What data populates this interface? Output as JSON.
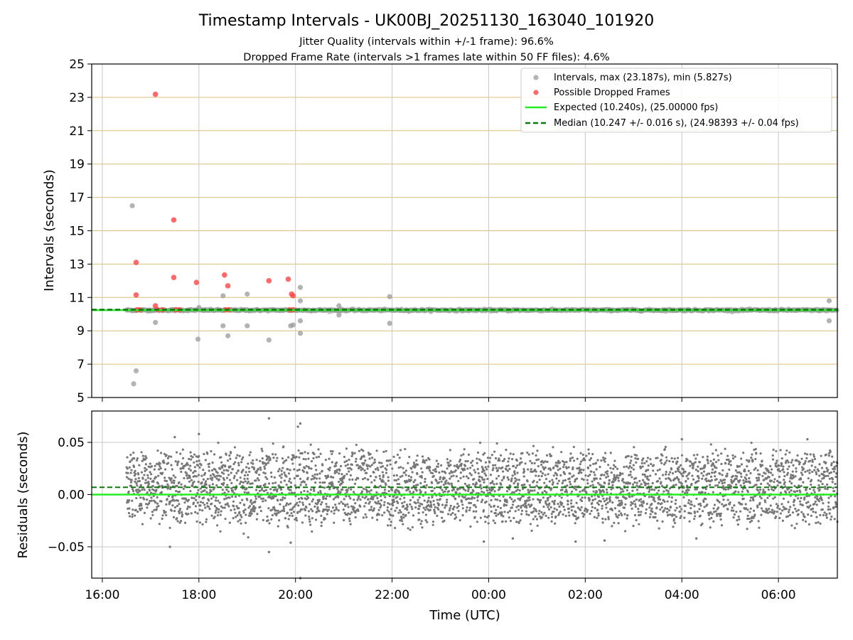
{
  "chart_data": [
    {
      "type": "scatter",
      "title": "Timestamp Intervals - UK00BJ_20251130_163040_101920",
      "subtitle_lines": [
        "Jitter Quality (intervals within +/-1 frame): 96.6%",
        "Dropped Frame Rate (intervals >1 frames late within 50 FF files): 4.6%"
      ],
      "xlabel": "",
      "ylabel": "Intervals (seconds)",
      "x_units": "hours since 16:00 UTC (2025-11-30)",
      "xlim": [
        -0.22,
        15.22
      ],
      "ylim": [
        5,
        25
      ],
      "yticks": [
        5,
        7,
        9,
        11,
        13,
        15,
        17,
        19,
        21,
        23,
        25
      ],
      "xticks": [
        0,
        2,
        4,
        6,
        8,
        10,
        12,
        14
      ],
      "xtick_labels": [
        "16:00",
        "18:00",
        "20:00",
        "22:00",
        "00:00",
        "02:00",
        "04:00",
        "06:00"
      ],
      "grid": true,
      "legend_position": "top-right",
      "legend": [
        {
          "label": "Intervals, max (23.187s), min (5.827s)",
          "marker": "circle",
          "color": "#999999"
        },
        {
          "label": "Possible Dropped Frames",
          "marker": "circle",
          "color": "#ff4444"
        },
        {
          "label": "Expected (10.240s), (25.00000 fps)",
          "style": "solid",
          "color": "#22ee22"
        },
        {
          "label": "Median (10.247 +/- 0.016 s), (24.98393 +/- 0.04 fps)",
          "style": "dashed",
          "color": "#0a7a0a"
        }
      ],
      "series": [
        {
          "name": "Intervals, max (23.187s), min (5.827s)",
          "color": "#999999",
          "baseline": {
            "y": 10.24,
            "x_range": [
              0.5,
              15.22
            ],
            "note": "dense band of points"
          },
          "points": [
            [
              0.62,
              16.5
            ],
            [
              0.65,
              5.82
            ],
            [
              0.7,
              6.6
            ],
            [
              1.1,
              9.5
            ],
            [
              1.98,
              8.5
            ],
            [
              2.0,
              10.4
            ],
            [
              2.5,
              11.1
            ],
            [
              2.5,
              9.3
            ],
            [
              2.6,
              8.7
            ],
            [
              3.0,
              11.2
            ],
            [
              3.0,
              9.3
            ],
            [
              3.45,
              8.45
            ],
            [
              3.9,
              9.3
            ],
            [
              3.95,
              9.35
            ],
            [
              4.1,
              11.6
            ],
            [
              4.1,
              10.8
            ],
            [
              4.1,
              9.6
            ],
            [
              4.1,
              8.85
            ],
            [
              4.9,
              10.5
            ],
            [
              4.9,
              9.95
            ],
            [
              5.95,
              11.05
            ],
            [
              5.95,
              9.45
            ],
            [
              15.05,
              10.8
            ],
            [
              15.05,
              9.6
            ]
          ]
        },
        {
          "name": "Possible Dropped Frames",
          "color": "#ff4444",
          "points": [
            [
              1.1,
              23.187
            ],
            [
              0.7,
              13.1
            ],
            [
              0.7,
              11.15
            ],
            [
              1.1,
              10.5
            ],
            [
              1.48,
              15.65
            ],
            [
              1.48,
              12.2
            ],
            [
              1.95,
              11.9
            ],
            [
              2.53,
              12.35
            ],
            [
              2.6,
              11.7
            ],
            [
              3.45,
              12.0
            ],
            [
              3.85,
              12.1
            ],
            [
              3.92,
              11.2
            ],
            [
              3.95,
              11.1
            ],
            [
              0.72,
              10.26
            ],
            [
              0.78,
              10.26
            ],
            [
              1.15,
              10.26
            ],
            [
              1.25,
              10.26
            ],
            [
              1.52,
              10.26
            ],
            [
              1.6,
              10.26
            ],
            [
              2.55,
              10.26
            ],
            [
              2.62,
              10.26
            ],
            [
              3.88,
              10.26
            ],
            [
              3.95,
              10.26
            ]
          ]
        },
        {
          "name": "Expected (10.240s), (25.00000 fps)",
          "type": "hline",
          "y": 10.24,
          "color": "#22ee22"
        },
        {
          "name": "Median (10.247 +/- 0.016 s), (24.98393 +/- 0.04 fps)",
          "type": "hline",
          "y": 10.247,
          "color": "#0a7a0a",
          "dashed": true
        }
      ]
    },
    {
      "type": "scatter",
      "title": "",
      "xlabel": "Time (UTC)",
      "ylabel": "Residuals (seconds)",
      "x_units": "hours since 16:00 UTC (2025-11-30)",
      "xlim": [
        -0.22,
        15.22
      ],
      "ylim": [
        -0.08,
        0.08
      ],
      "yticks": [
        -0.05,
        0.0,
        0.05
      ],
      "ytick_labels": [
        "−0.05",
        "0.00",
        "0.05"
      ],
      "xticks": [
        0,
        2,
        4,
        6,
        8,
        10,
        12,
        14
      ],
      "xtick_labels": [
        "16:00",
        "18:00",
        "20:00",
        "22:00",
        "00:00",
        "02:00",
        "04:00",
        "06:00"
      ],
      "grid": true,
      "series": [
        {
          "name": "Residuals",
          "color": "#777777",
          "x_range": [
            0.5,
            15.22
          ],
          "band": {
            "center": 0.007,
            "spread": 0.03
          },
          "outliers": [
            [
              3.45,
              0.073
            ],
            [
              4.1,
              0.068
            ],
            [
              4.05,
              0.065
            ],
            [
              2.0,
              0.058
            ],
            [
              1.5,
              0.055
            ],
            [
              12.0,
              0.053
            ],
            [
              14.6,
              0.053
            ],
            [
              3.45,
              -0.055
            ],
            [
              1.4,
              -0.05
            ],
            [
              4.1,
              -0.08
            ],
            [
              3.9,
              -0.046
            ],
            [
              9.8,
              -0.045
            ],
            [
              10.4,
              -0.044
            ],
            [
              8.5,
              -0.042
            ],
            [
              12.3,
              -0.042
            ],
            [
              7.9,
              -0.045
            ]
          ]
        },
        {
          "name": "Expected",
          "type": "hline",
          "y": 0.0,
          "color": "#22ee22"
        },
        {
          "name": "Median",
          "type": "hline",
          "y": 0.007,
          "color": "#0a7a0a",
          "dashed": true
        }
      ]
    }
  ]
}
